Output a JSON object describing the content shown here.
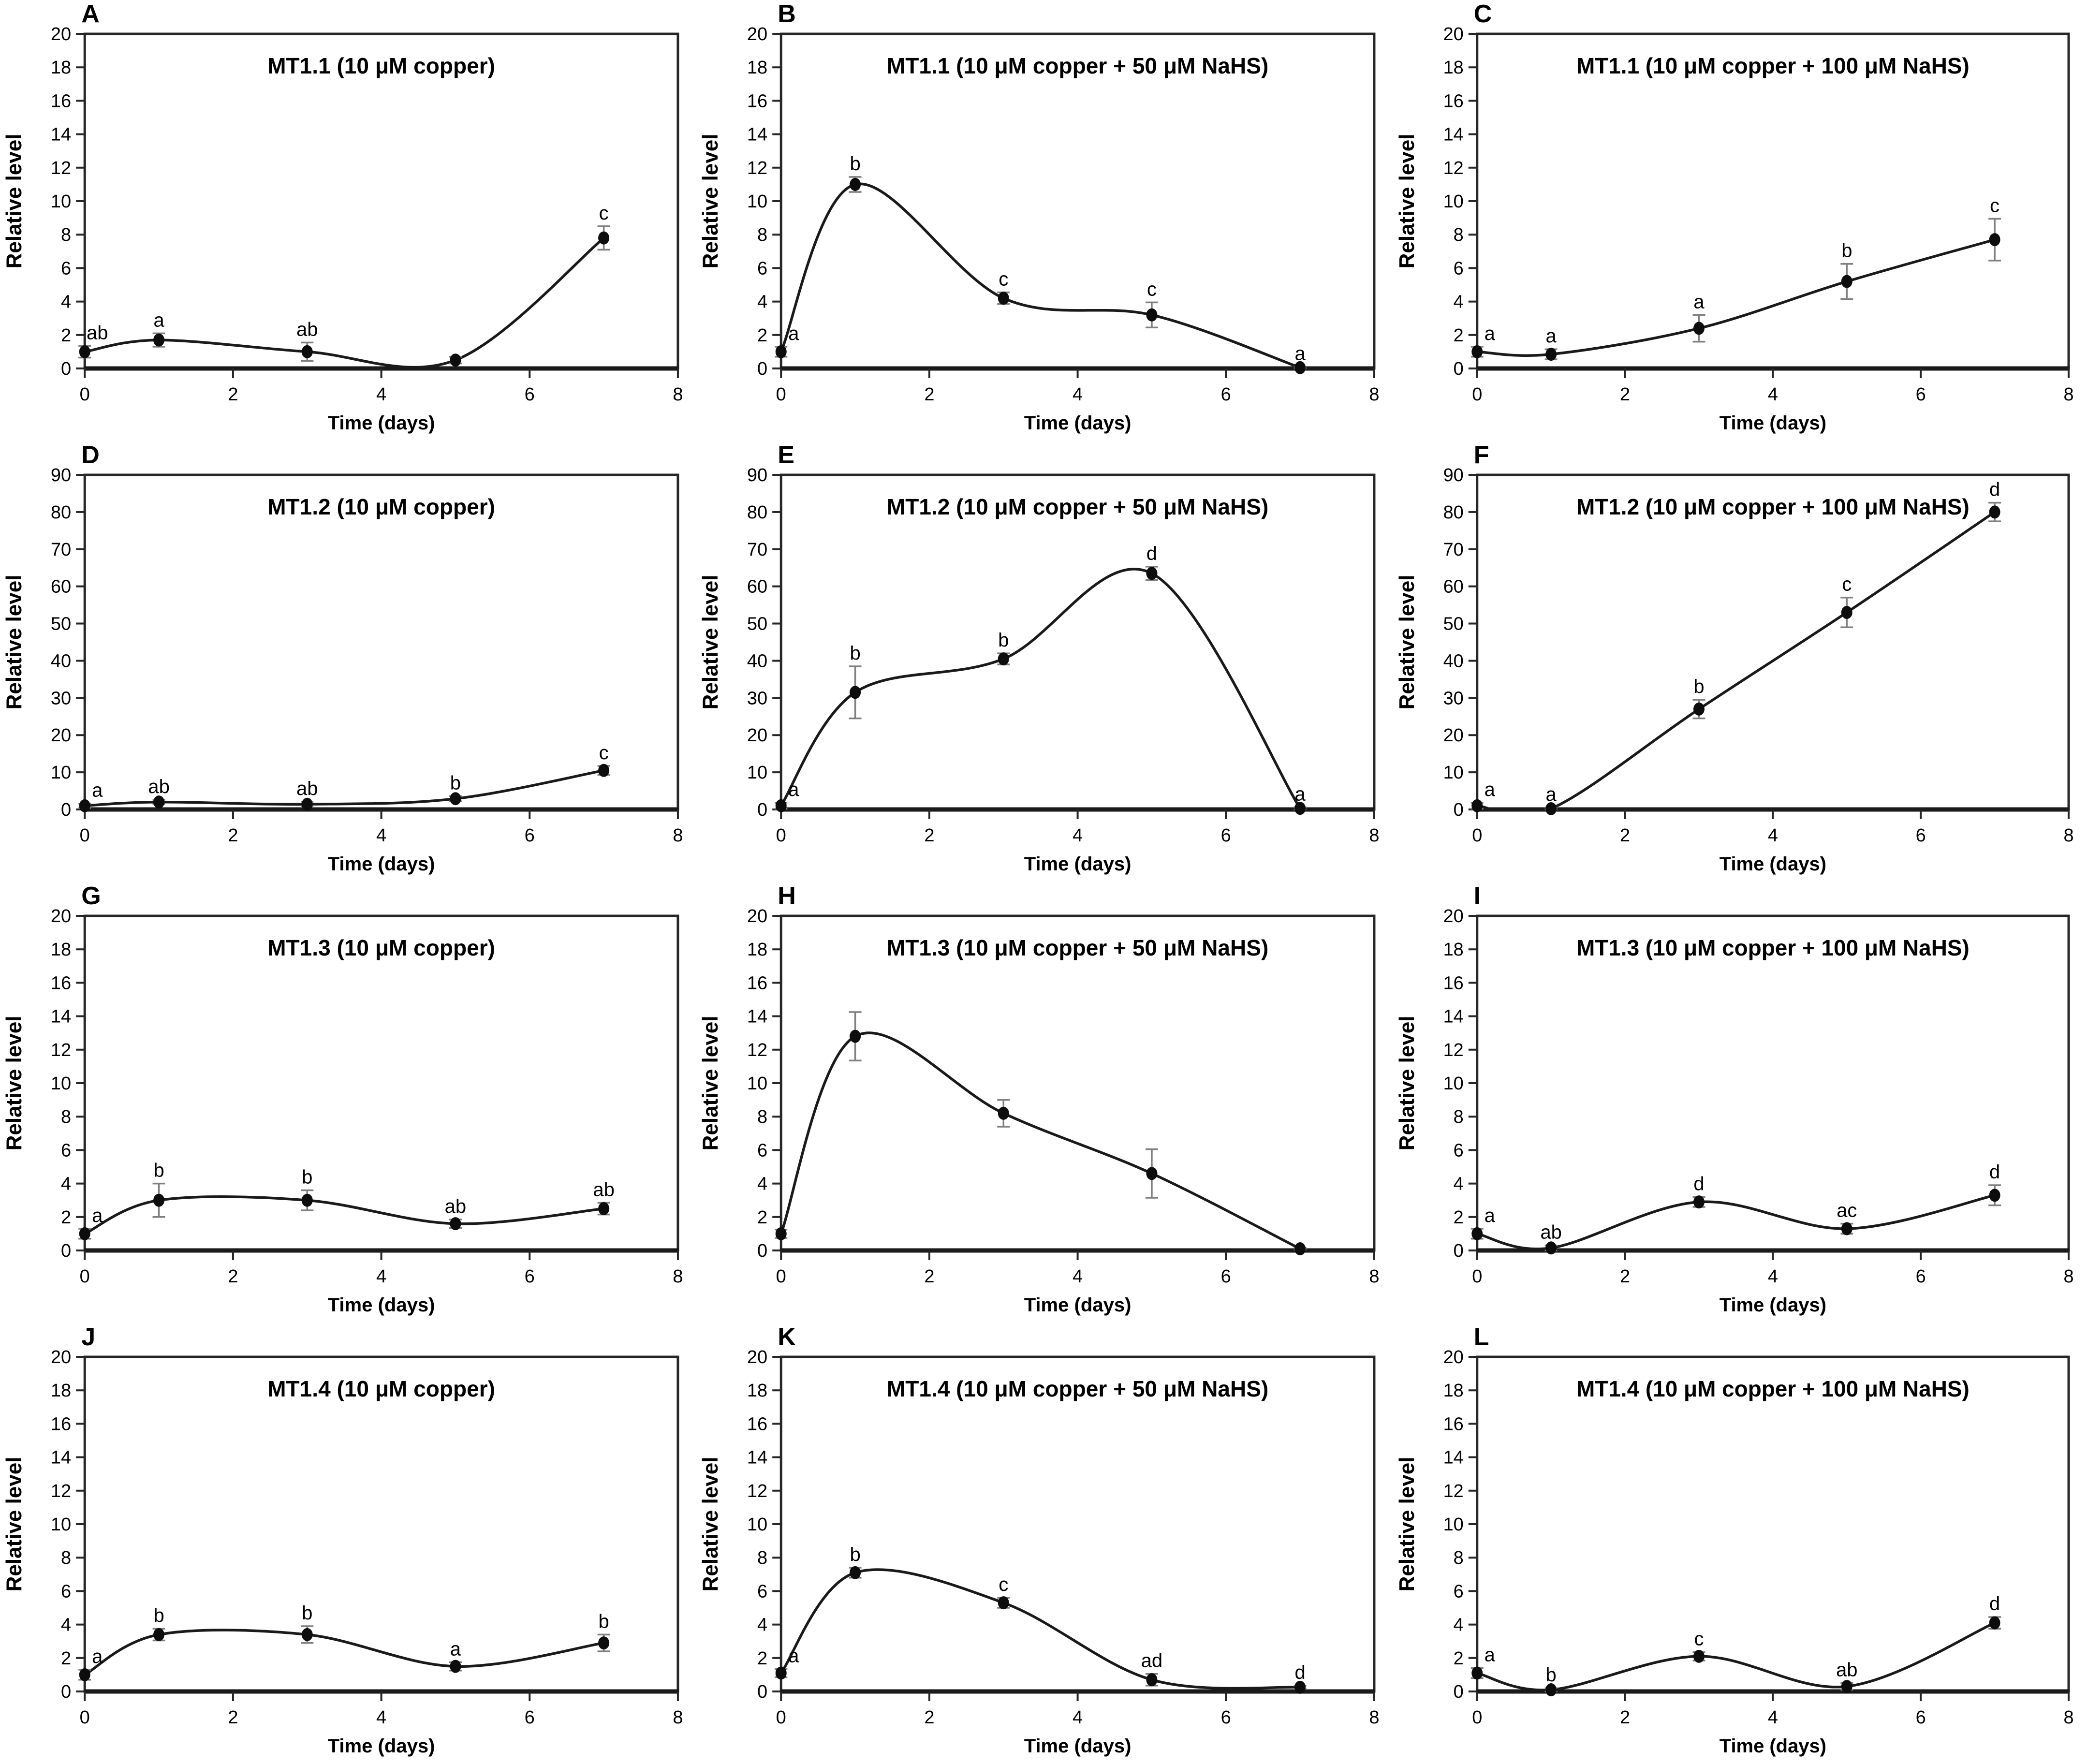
{
  "figure": {
    "xlabel": "Time (days)",
    "ylabel": "Relative level",
    "xlim": [
      0,
      8
    ],
    "x_ticks": [
      0,
      2,
      4,
      6,
      8
    ],
    "colors": {
      "line": "#1a1a1a",
      "marker": "#0d0d0d",
      "error_bar": "#7f7f7f",
      "axis": "#262626",
      "text": "#000000",
      "background": "#ffffff"
    }
  },
  "chart_data": [
    {
      "type": "line",
      "panel": "A",
      "title": "MT1.1 (10 μM copper)",
      "xlabel": "Time (days)",
      "ylabel": "Relative level",
      "x": [
        0,
        1,
        3,
        5,
        7
      ],
      "values": [
        1.0,
        1.7,
        1.0,
        0.5,
        7.8
      ],
      "errors": [
        0.35,
        0.4,
        0.55,
        0.2,
        0.7
      ],
      "sig_letters": [
        "ab",
        "a",
        "ab",
        null,
        "c"
      ],
      "ylim": [
        0,
        20
      ],
      "ytick_step": 2
    },
    {
      "type": "line",
      "panel": "B",
      "title": "MT1.1 (10 μM copper + 50 μM NaHS)",
      "xlabel": "Time (days)",
      "ylabel": "Relative level",
      "x": [
        0,
        1,
        3,
        5,
        7
      ],
      "values": [
        1.0,
        11.0,
        4.2,
        3.2,
        0.05
      ],
      "errors": [
        0.3,
        0.45,
        0.35,
        0.75,
        0.05
      ],
      "sig_letters": [
        "a",
        "b",
        "c",
        "c",
        "a"
      ],
      "ylim": [
        0,
        20
      ],
      "ytick_step": 2
    },
    {
      "type": "line",
      "panel": "C",
      "title": "MT1.1 (10 μM copper + 100 μM NaHS)",
      "xlabel": "Time (days)",
      "ylabel": "Relative level",
      "x": [
        0,
        1,
        3,
        5,
        7
      ],
      "values": [
        1.0,
        0.85,
        2.4,
        5.2,
        7.7
      ],
      "errors": [
        0.3,
        0.3,
        0.8,
        1.05,
        1.25
      ],
      "sig_letters": [
        "a",
        "a",
        "a",
        "b",
        "c"
      ],
      "ylim": [
        0,
        20
      ],
      "ytick_step": 2
    },
    {
      "type": "line",
      "panel": "D",
      "title": "MT1.2 (10 μM copper)",
      "xlabel": "Time (days)",
      "ylabel": "Relative level",
      "x": [
        0,
        1,
        3,
        5,
        7
      ],
      "values": [
        1.0,
        2.0,
        1.4,
        2.9,
        10.5
      ],
      "errors": [
        0.6,
        0.6,
        0.7,
        0.7,
        1.2
      ],
      "sig_letters": [
        "a",
        "ab",
        "ab",
        "b",
        "c"
      ],
      "ylim": [
        0,
        90
      ],
      "ytick_step": 10
    },
    {
      "type": "line",
      "panel": "E",
      "title": "MT1.2 (10 μM copper + 50 μM NaHS)",
      "xlabel": "Time (days)",
      "ylabel": "Relative level",
      "x": [
        0,
        1,
        3,
        5,
        7
      ],
      "values": [
        1.0,
        31.5,
        40.5,
        63.5,
        0.3
      ],
      "errors": [
        0.8,
        7.0,
        1.5,
        1.8,
        0.3
      ],
      "sig_letters": [
        "a",
        "b",
        "b",
        "d",
        "a"
      ],
      "ylim": [
        0,
        90
      ],
      "ytick_step": 10
    },
    {
      "type": "line",
      "panel": "F",
      "title": "MT1.2 (10 μM copper + 100 μM NaHS)",
      "xlabel": "Time (days)",
      "ylabel": "Relative level",
      "x": [
        0,
        1,
        3,
        5,
        7
      ],
      "values": [
        1.0,
        0.2,
        27.0,
        53.0,
        80.0
      ],
      "errors": [
        0.8,
        0.3,
        2.5,
        4.0,
        2.5
      ],
      "sig_letters": [
        "a",
        "a",
        "b",
        "c",
        "d"
      ],
      "ylim": [
        0,
        90
      ],
      "ytick_step": 10
    },
    {
      "type": "line",
      "panel": "G",
      "title": "MT1.3 (10 μM copper)",
      "xlabel": "Time (days)",
      "ylabel": "Relative level",
      "x": [
        0,
        1,
        3,
        5,
        7
      ],
      "values": [
        1.0,
        3.0,
        3.0,
        1.6,
        2.5
      ],
      "errors": [
        0.3,
        1.0,
        0.6,
        0.25,
        0.35
      ],
      "sig_letters": [
        "a",
        "b",
        "b",
        "ab",
        "ab"
      ],
      "ylim": [
        0,
        20
      ],
      "ytick_step": 2
    },
    {
      "type": "line",
      "panel": "H",
      "title": "MT1.3 (10 μM copper + 50 μM NaHS)",
      "xlabel": "Time (days)",
      "ylabel": "Relative level",
      "x": [
        0,
        1,
        3,
        5,
        7
      ],
      "values": [
        1.0,
        12.8,
        8.2,
        4.6,
        0.1
      ],
      "errors": [
        0.25,
        1.45,
        0.8,
        1.45,
        0.05
      ],
      "sig_letters": [
        null,
        null,
        null,
        null,
        null
      ],
      "ylim": [
        0,
        20
      ],
      "ytick_step": 2
    },
    {
      "type": "line",
      "panel": "I",
      "title": "MT1.3 (10 μM copper + 100 μM NaHS)",
      "xlabel": "Time (days)",
      "ylabel": "Relative level",
      "x": [
        0,
        1,
        3,
        5,
        7
      ],
      "values": [
        1.0,
        0.15,
        2.9,
        1.3,
        3.3
      ],
      "errors": [
        0.3,
        0.15,
        0.3,
        0.3,
        0.6
      ],
      "sig_letters": [
        "a",
        "ab",
        "d",
        "ac",
        "d"
      ],
      "ylim": [
        0,
        20
      ],
      "ytick_step": 2
    },
    {
      "type": "line",
      "panel": "J",
      "title": "MT1.4 (10 μM copper)",
      "xlabel": "Time (days)",
      "ylabel": "Relative level",
      "x": [
        0,
        1,
        3,
        5,
        7
      ],
      "values": [
        1.0,
        3.4,
        3.4,
        1.5,
        2.9
      ],
      "errors": [
        0.3,
        0.35,
        0.5,
        0.25,
        0.5
      ],
      "sig_letters": [
        "a",
        "b",
        "b",
        "a",
        "b"
      ],
      "ylim": [
        0,
        20
      ],
      "ytick_step": 2
    },
    {
      "type": "line",
      "panel": "K",
      "title": "MT1.4 (10 μM copper + 50 μM NaHS)",
      "xlabel": "Time (days)",
      "ylabel": "Relative level",
      "x": [
        0,
        1,
        3,
        5,
        7
      ],
      "values": [
        1.1,
        7.1,
        5.3,
        0.7,
        0.25
      ],
      "errors": [
        0.25,
        0.3,
        0.3,
        0.35,
        0.1
      ],
      "sig_letters": [
        "a",
        "b",
        "c",
        "ad",
        "d"
      ],
      "ylim": [
        0,
        20
      ],
      "ytick_step": 2
    },
    {
      "type": "line",
      "panel": "L",
      "title": "MT1.4 (10 μM copper + 100 μM NaHS)",
      "xlabel": "Time (days)",
      "ylabel": "Relative level",
      "x": [
        0,
        1,
        3,
        5,
        7
      ],
      "values": [
        1.1,
        0.1,
        2.1,
        0.3,
        4.1
      ],
      "errors": [
        0.3,
        0.1,
        0.25,
        0.2,
        0.35
      ],
      "sig_letters": [
        "a",
        "b",
        "c",
        "ab",
        "d"
      ],
      "ylim": [
        0,
        20
      ],
      "ytick_step": 2
    }
  ]
}
